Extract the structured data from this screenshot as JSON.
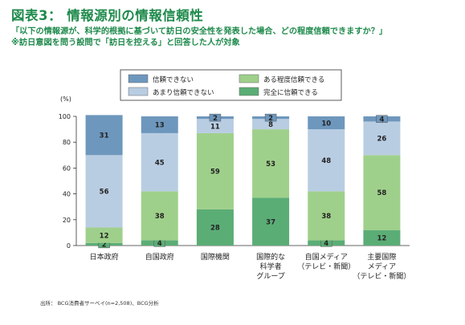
{
  "header": {
    "title": "図表3： 情報源別の情報信頼性",
    "subtitle1": "「以下の情報源が、科学的根拠に基づいて訪日の安全性を発表した場合、どの程度信頼できますか？」",
    "subtitle2": "※訪日意図を問う設問で「訪日を控える」と回答した人が対象"
  },
  "footer": {
    "source": "出所： BCG消費者サーベイ(n=2,508)、BCG分析"
  },
  "colors": {
    "not_trust": "#6e97bd",
    "little_trust": "#b9cde2",
    "some_trust": "#9fd08b",
    "full_trust": "#5bad76"
  },
  "chart_data": {
    "type": "bar",
    "stacked": true,
    "ylabel": "(%)",
    "ylim": [
      0,
      100
    ],
    "yticks": [
      0,
      20,
      40,
      60,
      80,
      100
    ],
    "categories": [
      [
        "日本政府"
      ],
      [
        "自国政府"
      ],
      [
        "国際機関"
      ],
      [
        "国際的な",
        "科学者",
        "グループ"
      ],
      [
        "自国メディア",
        "（テレビ・新聞）"
      ],
      [
        "主要国際",
        "メディア",
        "（テレビ・新聞）"
      ]
    ],
    "series": [
      {
        "key": "full_trust",
        "name": "完全に信頼できる",
        "values": [
          2,
          4,
          28,
          37,
          4,
          12
        ]
      },
      {
        "key": "some_trust",
        "name": "ある程度信頼できる",
        "values": [
          12,
          38,
          59,
          53,
          38,
          58
        ]
      },
      {
        "key": "little_trust",
        "name": "あまり信頼できない",
        "values": [
          56,
          45,
          11,
          8,
          48,
          26
        ]
      },
      {
        "key": "not_trust",
        "name": "信頼できない",
        "values": [
          31,
          13,
          2,
          2,
          10,
          4
        ]
      }
    ],
    "legend": {
      "placement": "top",
      "order": [
        "not_trust",
        "some_trust",
        "little_trust",
        "full_trust"
      ]
    },
    "grid": false
  }
}
